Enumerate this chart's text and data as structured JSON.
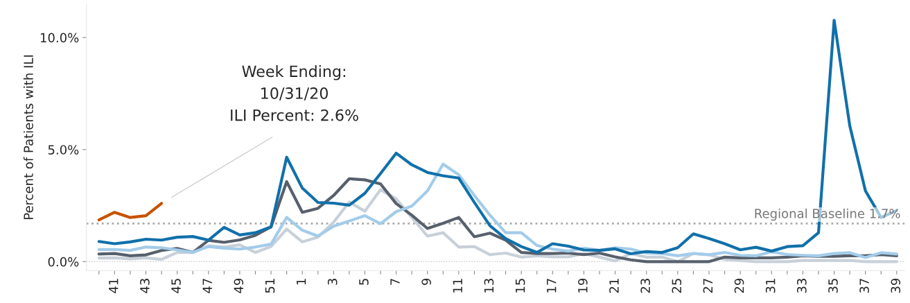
{
  "chart_data": {
    "type": "line",
    "ylabel": "Percent of Patients with ILI",
    "categories": [
      null,
      "41",
      null,
      "43",
      null,
      "45",
      null,
      "47",
      null,
      "49",
      null,
      "51",
      null,
      "1",
      null,
      "3",
      null,
      "5",
      null,
      "7",
      null,
      "9",
      null,
      "11",
      null,
      "13",
      null,
      "15",
      null,
      "17",
      null,
      "19",
      null,
      "21",
      null,
      "23",
      null,
      "25",
      null,
      "27",
      null,
      "29",
      null,
      "31",
      null,
      "33",
      null,
      "35",
      null,
      "37",
      null,
      "39"
    ],
    "series": [
      {
        "color": "#c8d0d9",
        "values": [
          0.16,
          0.17,
          0.12,
          0.17,
          0.1,
          0.41,
          0.41,
          0.7,
          0.65,
          0.75,
          0.41,
          0.67,
          1.45,
          0.88,
          1.09,
          1.76,
          2.66,
          2.25,
          3.21,
          2.8,
          1.97,
          1.14,
          1.29,
          0.65,
          0.67,
          0.31,
          0.38,
          0.2,
          0.26,
          0.21,
          0.21,
          0.36,
          0.2,
          0.03,
          0.36,
          0.2,
          0.2,
          0,
          0.36,
          0.3,
          0.1,
          0.05,
          0,
          0,
          0,
          0.05,
          0.05,
          0.05,
          0.05,
          0,
          0,
          0
        ]
      },
      {
        "color": "#57606c",
        "values": [
          0.34,
          0.36,
          0.26,
          0.3,
          0.5,
          0.59,
          0.41,
          0.95,
          0.86,
          0.97,
          1.17,
          1.55,
          3.57,
          2.2,
          2.38,
          2.95,
          3.7,
          3.65,
          3.47,
          2.59,
          2.07,
          1.48,
          1.71,
          1.97,
          1.11,
          1.27,
          0.96,
          0.41,
          0.36,
          0.36,
          0.38,
          0.31,
          0.38,
          0.21,
          0.08,
          0,
          0,
          0,
          0,
          0,
          0.2,
          0.17,
          0.17,
          0.17,
          0.2,
          0.26,
          0.24,
          0.24,
          0.26,
          0.26,
          0.31,
          0.26
        ]
      },
      {
        "color": "#a3cce9",
        "values": [
          0.54,
          0.54,
          0.5,
          0.65,
          0.62,
          0.52,
          0.41,
          0.67,
          0.6,
          0.56,
          0.65,
          0.78,
          1.97,
          1.4,
          1.14,
          1.58,
          1.81,
          2.05,
          1.69,
          2.23,
          2.48,
          3.16,
          4.35,
          3.88,
          2.95,
          2.07,
          1.29,
          1.29,
          0.72,
          0.56,
          0.47,
          0.6,
          0.5,
          0.62,
          0.56,
          0.38,
          0.36,
          0.26,
          0.36,
          0.31,
          0.41,
          0.28,
          0.26,
          0.44,
          0.32,
          0.28,
          0.26,
          0.36,
          0.4,
          0.18,
          0.4,
          0.34
        ]
      },
      {
        "color": "#1170aa",
        "values": [
          0.9,
          0.8,
          0.88,
          1.0,
          0.96,
          1.09,
          1.12,
          0.96,
          1.53,
          1.19,
          1.29,
          1.55,
          4.66,
          3.28,
          2.64,
          2.61,
          2.52,
          3.05,
          3.93,
          4.84,
          4.32,
          3.98,
          3.83,
          3.73,
          2.64,
          1.6,
          1.03,
          0.67,
          0.41,
          0.8,
          0.69,
          0.52,
          0.5,
          0.57,
          0.35,
          0.45,
          0.41,
          0.62,
          1.24,
          1.03,
          0.8,
          0.53,
          0.64,
          0.47,
          0.67,
          0.71,
          1.29,
          10.77,
          6.06,
          3.16,
          1.97,
          2.28
        ]
      },
      {
        "color": "#c85200",
        "values": [
          1.86,
          2.2,
          1.97,
          2.05,
          2.6,
          null,
          null,
          null,
          null,
          null,
          null,
          null,
          null,
          null,
          null,
          null,
          null,
          null,
          null,
          null,
          null,
          null,
          null,
          null,
          null,
          null,
          null,
          null,
          null,
          null,
          null,
          null,
          null,
          null,
          null,
          null,
          null,
          null,
          null,
          null,
          null,
          null,
          null,
          null,
          null,
          null,
          null,
          null,
          null,
          null,
          null,
          null
        ]
      }
    ],
    "ylim": [
      -0.4,
      11.5
    ],
    "yticks": [
      {
        "value": 0,
        "label": "0.0%"
      },
      {
        "value": 5,
        "label": "5.0%"
      },
      {
        "value": 10,
        "label": "10.0%"
      }
    ],
    "ref_lines": [
      {
        "axis": "y",
        "value": 1.7,
        "label": "Regional Baseline 1.7%",
        "color": "#aaaaaa",
        "line_style": "dotted"
      },
      {
        "axis": "y",
        "value": 0,
        "color": "#cccccc",
        "line_style": "dotted"
      }
    ],
    "annotations": [
      "Week Ending:\n10/31/20\nILI Percent: 2.6%"
    ],
    "line_style": "solid",
    "grid": false
  }
}
